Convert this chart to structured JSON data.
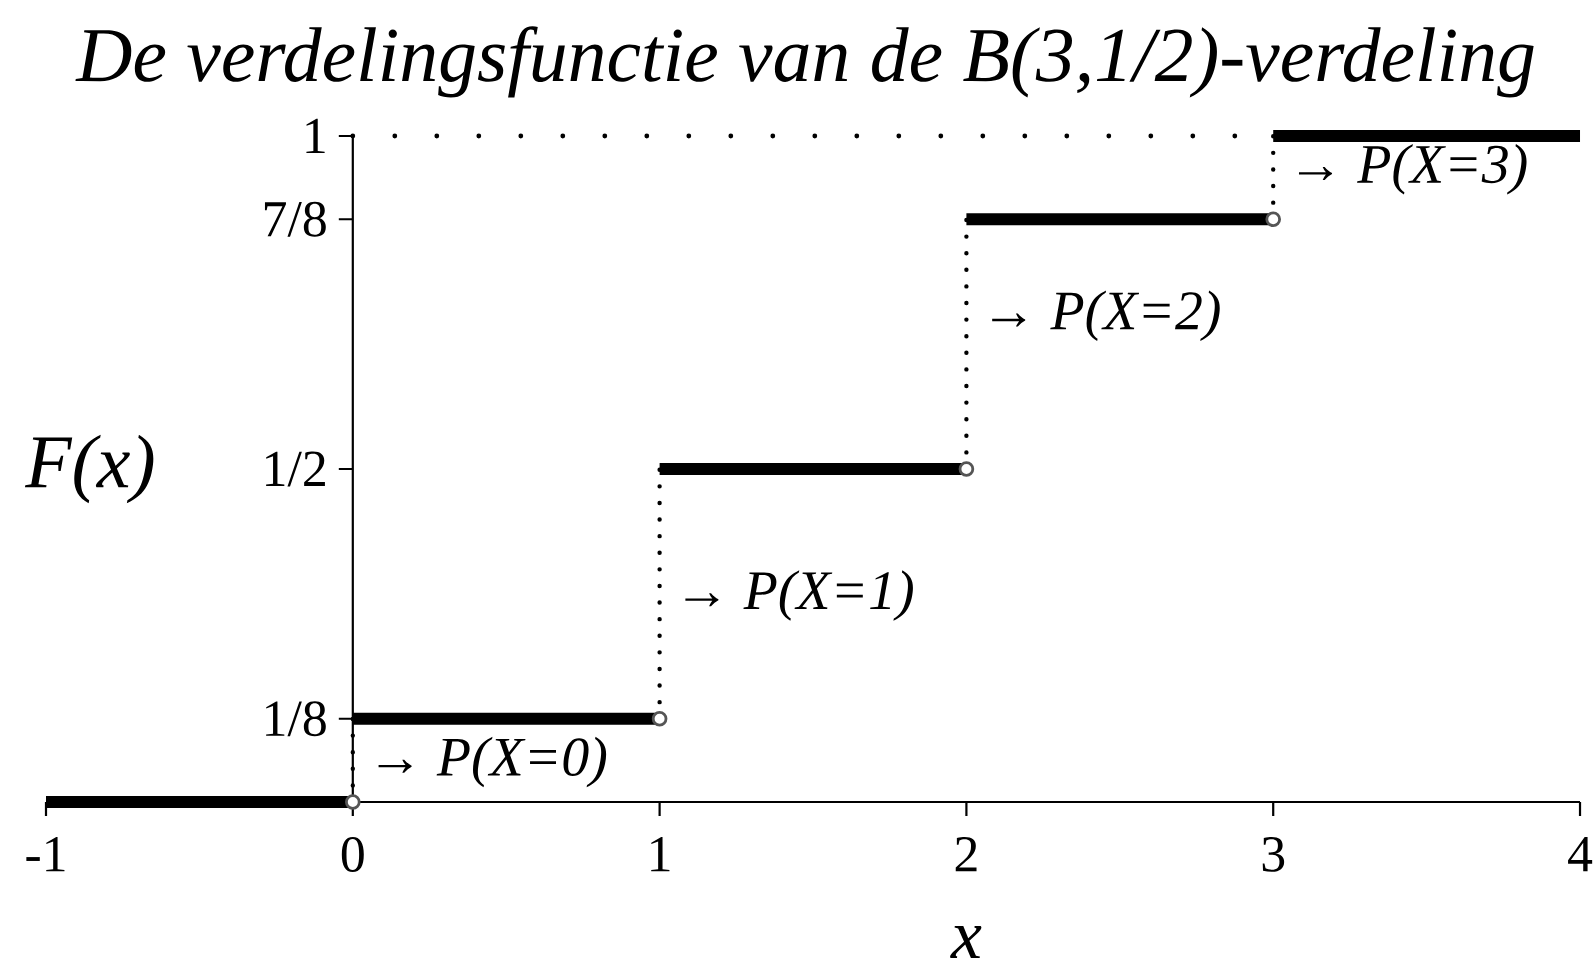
{
  "chart_data": {
    "type": "step",
    "title": "De verdelingsfunctie van de B(3,1/2)-verdeling",
    "xlabel": "x",
    "ylabel": "F(x)",
    "x": [
      -1,
      0,
      1,
      2,
      3,
      4
    ],
    "series": [
      {
        "color": "#000000",
        "values": [
          0,
          0.125,
          0.5,
          0.875,
          1,
          1
        ]
      },
      {
        "type": "scatter",
        "x": [
          0,
          1,
          2,
          3
        ],
        "values": [
          0,
          0.125,
          0.5,
          0.875
        ],
        "color": "#555555",
        "marker": "circle"
      }
    ],
    "xlim": [
      -1,
      4
    ],
    "ylim": [
      0,
      1
    ],
    "xticks": [
      -1,
      0,
      1,
      2,
      3,
      4
    ],
    "yticks": [
      {
        "value": 0.125,
        "label": "1/8"
      },
      {
        "value": 0.5,
        "label": "1/2"
      },
      {
        "value": 0.875,
        "label": "7/8"
      },
      1
    ],
    "ref_lines": [
      {
        "axis": "y",
        "value": 1,
        "color": "#000000",
        "line_style": "dotted"
      }
    ],
    "annotations": [
      {
        "text": "→ P(X=0)",
        "x": 0,
        "y": 0.06
      },
      {
        "text": "→ P(X=1)",
        "x": 1,
        "y": 0.31
      },
      {
        "text": "→ P(X=2)",
        "x": 2,
        "y": 0.73
      },
      {
        "text": "→ P(X=3)",
        "x": 3,
        "y": 0.95
      }
    ]
  }
}
